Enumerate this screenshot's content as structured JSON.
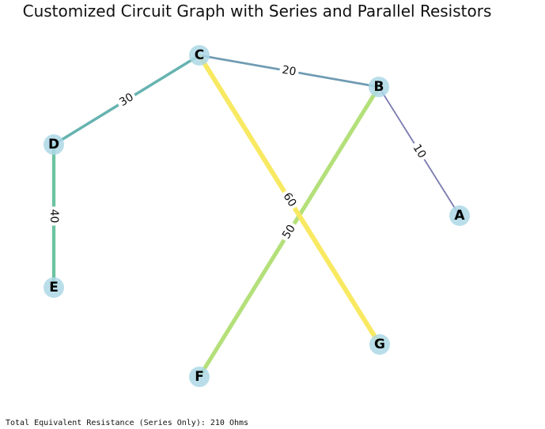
{
  "title": "Customized Circuit Graph with Series and Parallel Resistors",
  "footer": "Total Equivalent Resistance (Series Only): 210 Ohms",
  "node_color": "#add8e6",
  "nodes": [
    "C",
    "B",
    "D",
    "A",
    "E",
    "G",
    "F"
  ],
  "edges": [
    {
      "from": "B",
      "to": "A",
      "label": "10",
      "resistance": 10,
      "color": "#7b7bb0"
    },
    {
      "from": "C",
      "to": "B",
      "label": "20",
      "resistance": 20,
      "color": "#6f9bb3"
    },
    {
      "from": "C",
      "to": "D",
      "label": "30",
      "resistance": 30,
      "color": "#66b3b0"
    },
    {
      "from": "D",
      "to": "E",
      "label": "40",
      "resistance": 40,
      "color": "#6cc3a0"
    },
    {
      "from": "B",
      "to": "F",
      "label": "50",
      "resistance": 50,
      "color": "#b4e07a"
    },
    {
      "from": "C",
      "to": "G",
      "label": "60",
      "resistance": 60,
      "color": "#f8e962"
    }
  ]
}
